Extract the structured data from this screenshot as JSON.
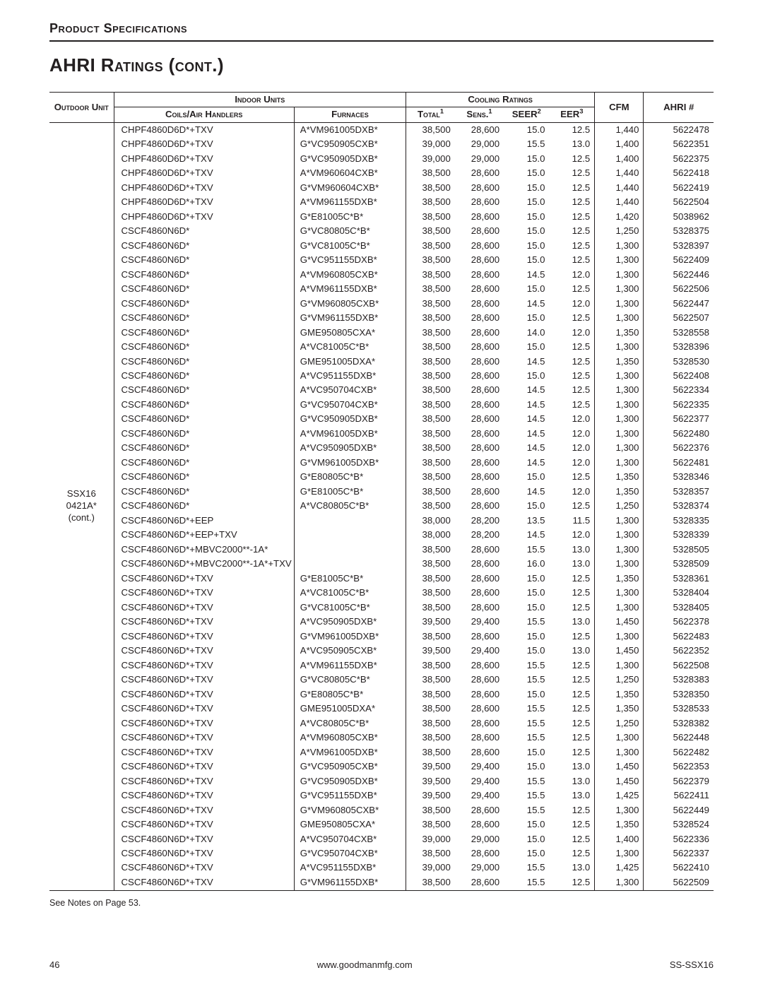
{
  "section_label": "Product Specifications",
  "page_title": "AHRI Ratings (cont.)",
  "footnote": "See Notes on Page 53.",
  "footer": {
    "page": "46",
    "center": "www.goodmanmfg.com",
    "right": "SS-SSX16"
  },
  "headers": {
    "outdoor_unit": "Outdoor Unit",
    "indoor_units": "Indoor Units",
    "cooling_ratings": "Cooling Ratings",
    "cfm": "CFM",
    "ahri": "AHRI #",
    "coils": "Coils/Air Handlers",
    "furnaces": "Furnaces",
    "total": "Total",
    "sens": "Sens.",
    "seer": "SEER",
    "eer": "EER"
  },
  "outdoor_unit_lines": [
    "SSX16",
    "0421A*",
    "(cont.)"
  ],
  "col_widths_pct": [
    9.2,
    25.8,
    16.0,
    7.0,
    7.0,
    6.5,
    6.5,
    7.0,
    10.0
  ],
  "rows": [
    [
      "CHPF4860D6D*+TXV",
      "A*VM961005DXB*",
      "38,500",
      "28,600",
      "15.0",
      "12.5",
      "1,440",
      "5622478"
    ],
    [
      "CHPF4860D6D*+TXV",
      "G*VC950905CXB*",
      "39,000",
      "29,000",
      "15.5",
      "13.0",
      "1,400",
      "5622351"
    ],
    [
      "CHPF4860D6D*+TXV",
      "G*VC950905DXB*",
      "39,000",
      "29,000",
      "15.0",
      "12.5",
      "1,400",
      "5622375"
    ],
    [
      "CHPF4860D6D*+TXV",
      "A*VM960604CXB*",
      "38,500",
      "28,600",
      "15.0",
      "12.5",
      "1,440",
      "5622418"
    ],
    [
      "CHPF4860D6D*+TXV",
      "G*VM960604CXB*",
      "38,500",
      "28,600",
      "15.0",
      "12.5",
      "1,440",
      "5622419"
    ],
    [
      "CHPF4860D6D*+TXV",
      "A*VM961155DXB*",
      "38,500",
      "28,600",
      "15.0",
      "12.5",
      "1,440",
      "5622504"
    ],
    [
      "CHPF4860D6D*+TXV",
      "G*E81005C*B*",
      "38,500",
      "28,600",
      "15.0",
      "12.5",
      "1,420",
      "5038962"
    ],
    [
      "CSCF4860N6D*",
      "G*VC80805C*B*",
      "38,500",
      "28,600",
      "15.0",
      "12.5",
      "1,250",
      "5328375"
    ],
    [
      "CSCF4860N6D*",
      "G*VC81005C*B*",
      "38,500",
      "28,600",
      "15.0",
      "12.5",
      "1,300",
      "5328397"
    ],
    [
      "CSCF4860N6D*",
      "G*VC951155DXB*",
      "38,500",
      "28,600",
      "15.0",
      "12.5",
      "1,300",
      "5622409"
    ],
    [
      "CSCF4860N6D*",
      "A*VM960805CXB*",
      "38,500",
      "28,600",
      "14.5",
      "12.0",
      "1,300",
      "5622446"
    ],
    [
      "CSCF4860N6D*",
      "A*VM961155DXB*",
      "38,500",
      "28,600",
      "15.0",
      "12.5",
      "1,300",
      "5622506"
    ],
    [
      "CSCF4860N6D*",
      "G*VM960805CXB*",
      "38,500",
      "28,600",
      "14.5",
      "12.0",
      "1,300",
      "5622447"
    ],
    [
      "CSCF4860N6D*",
      "G*VM961155DXB*",
      "38,500",
      "28,600",
      "15.0",
      "12.5",
      "1,300",
      "5622507"
    ],
    [
      "CSCF4860N6D*",
      "GME950805CXA*",
      "38,500",
      "28,600",
      "14.0",
      "12.0",
      "1,350",
      "5328558"
    ],
    [
      "CSCF4860N6D*",
      "A*VC81005C*B*",
      "38,500",
      "28,600",
      "15.0",
      "12.5",
      "1,300",
      "5328396"
    ],
    [
      "CSCF4860N6D*",
      "GME951005DXA*",
      "38,500",
      "28,600",
      "14.5",
      "12.5",
      "1,350",
      "5328530"
    ],
    [
      "CSCF4860N6D*",
      "A*VC951155DXB*",
      "38,500",
      "28,600",
      "15.0",
      "12.5",
      "1,300",
      "5622408"
    ],
    [
      "CSCF4860N6D*",
      "A*VC950704CXB*",
      "38,500",
      "28,600",
      "14.5",
      "12.5",
      "1,300",
      "5622334"
    ],
    [
      "CSCF4860N6D*",
      "G*VC950704CXB*",
      "38,500",
      "28,600",
      "14.5",
      "12.5",
      "1,300",
      "5622335"
    ],
    [
      "CSCF4860N6D*",
      "G*VC950905DXB*",
      "38,500",
      "28,600",
      "14.5",
      "12.0",
      "1,300",
      "5622377"
    ],
    [
      "CSCF4860N6D*",
      "A*VM961005DXB*",
      "38,500",
      "28,600",
      "14.5",
      "12.0",
      "1,300",
      "5622480"
    ],
    [
      "CSCF4860N6D*",
      "A*VC950905DXB*",
      "38,500",
      "28,600",
      "14.5",
      "12.0",
      "1,300",
      "5622376"
    ],
    [
      "CSCF4860N6D*",
      "G*VM961005DXB*",
      "38,500",
      "28,600",
      "14.5",
      "12.0",
      "1,300",
      "5622481"
    ],
    [
      "CSCF4860N6D*",
      "G*E80805C*B*",
      "38,500",
      "28,600",
      "15.0",
      "12.5",
      "1,350",
      "5328346"
    ],
    [
      "CSCF4860N6D*",
      "G*E81005C*B*",
      "38,500",
      "28,600",
      "14.5",
      "12.0",
      "1,350",
      "5328357"
    ],
    [
      "CSCF4860N6D*",
      "A*VC80805C*B*",
      "38,500",
      "28,600",
      "15.0",
      "12.5",
      "1,250",
      "5328374"
    ],
    [
      "CSCF4860N6D*+EEP",
      "",
      "38,000",
      "28,200",
      "13.5",
      "11.5",
      "1,300",
      "5328335"
    ],
    [
      "CSCF4860N6D*+EEP+TXV",
      "",
      "38,000",
      "28,200",
      "14.5",
      "12.0",
      "1,300",
      "5328339"
    ],
    [
      "CSCF4860N6D*+MBVC2000**-1A*",
      "",
      "38,500",
      "28,600",
      "15.5",
      "13.0",
      "1,300",
      "5328505"
    ],
    [
      "CSCF4860N6D*+MBVC2000**-1A*+TXV",
      "",
      "38,500",
      "28,600",
      "16.0",
      "13.0",
      "1,300",
      "5328509"
    ],
    [
      "CSCF4860N6D*+TXV",
      "G*E81005C*B*",
      "38,500",
      "28,600",
      "15.0",
      "12.5",
      "1,350",
      "5328361"
    ],
    [
      "CSCF4860N6D*+TXV",
      "A*VC81005C*B*",
      "38,500",
      "28,600",
      "15.0",
      "12.5",
      "1,300",
      "5328404"
    ],
    [
      "CSCF4860N6D*+TXV",
      "G*VC81005C*B*",
      "38,500",
      "28,600",
      "15.0",
      "12.5",
      "1,300",
      "5328405"
    ],
    [
      "CSCF4860N6D*+TXV",
      "A*VC950905DXB*",
      "39,500",
      "29,400",
      "15.5",
      "13.0",
      "1,450",
      "5622378"
    ],
    [
      "CSCF4860N6D*+TXV",
      "G*VM961005DXB*",
      "38,500",
      "28,600",
      "15.0",
      "12.5",
      "1,300",
      "5622483"
    ],
    [
      "CSCF4860N6D*+TXV",
      "A*VC950905CXB*",
      "39,500",
      "29,400",
      "15.0",
      "13.0",
      "1,450",
      "5622352"
    ],
    [
      "CSCF4860N6D*+TXV",
      "A*VM961155DXB*",
      "38,500",
      "28,600",
      "15.5",
      "12.5",
      "1,300",
      "5622508"
    ],
    [
      "CSCF4860N6D*+TXV",
      "G*VC80805C*B*",
      "38,500",
      "28,600",
      "15.5",
      "12.5",
      "1,250",
      "5328383"
    ],
    [
      "CSCF4860N6D*+TXV",
      "G*E80805C*B*",
      "38,500",
      "28,600",
      "15.0",
      "12.5",
      "1,350",
      "5328350"
    ],
    [
      "CSCF4860N6D*+TXV",
      "GME951005DXA*",
      "38,500",
      "28,600",
      "15.5",
      "12.5",
      "1,350",
      "5328533"
    ],
    [
      "CSCF4860N6D*+TXV",
      "A*VC80805C*B*",
      "38,500",
      "28,600",
      "15.5",
      "12.5",
      "1,250",
      "5328382"
    ],
    [
      "CSCF4860N6D*+TXV",
      "A*VM960805CXB*",
      "38,500",
      "28,600",
      "15.5",
      "12.5",
      "1,300",
      "5622448"
    ],
    [
      "CSCF4860N6D*+TXV",
      "A*VM961005DXB*",
      "38,500",
      "28,600",
      "15.0",
      "12.5",
      "1,300",
      "5622482"
    ],
    [
      "CSCF4860N6D*+TXV",
      "G*VC950905CXB*",
      "39,500",
      "29,400",
      "15.0",
      "13.0",
      "1,450",
      "5622353"
    ],
    [
      "CSCF4860N6D*+TXV",
      "G*VC950905DXB*",
      "39,500",
      "29,400",
      "15.5",
      "13.0",
      "1,450",
      "5622379"
    ],
    [
      "CSCF4860N6D*+TXV",
      "G*VC951155DXB*",
      "39,500",
      "29,400",
      "15.5",
      "13.0",
      "1,425",
      "5622411"
    ],
    [
      "CSCF4860N6D*+TXV",
      "G*VM960805CXB*",
      "38,500",
      "28,600",
      "15.5",
      "12.5",
      "1,300",
      "5622449"
    ],
    [
      "CSCF4860N6D*+TXV",
      "GME950805CXA*",
      "38,500",
      "28,600",
      "15.0",
      "12.5",
      "1,350",
      "5328524"
    ],
    [
      "CSCF4860N6D*+TXV",
      "A*VC950704CXB*",
      "39,000",
      "29,000",
      "15.0",
      "12.5",
      "1,400",
      "5622336"
    ],
    [
      "CSCF4860N6D*+TXV",
      "G*VC950704CXB*",
      "38,500",
      "28,600",
      "15.0",
      "12.5",
      "1,300",
      "5622337"
    ],
    [
      "CSCF4860N6D*+TXV",
      "A*VC951155DXB*",
      "39,000",
      "29,000",
      "15.5",
      "13.0",
      "1,425",
      "5622410"
    ],
    [
      "CSCF4860N6D*+TXV",
      "G*VM961155DXB*",
      "38,500",
      "28,600",
      "15.5",
      "12.5",
      "1,300",
      "5622509"
    ]
  ]
}
